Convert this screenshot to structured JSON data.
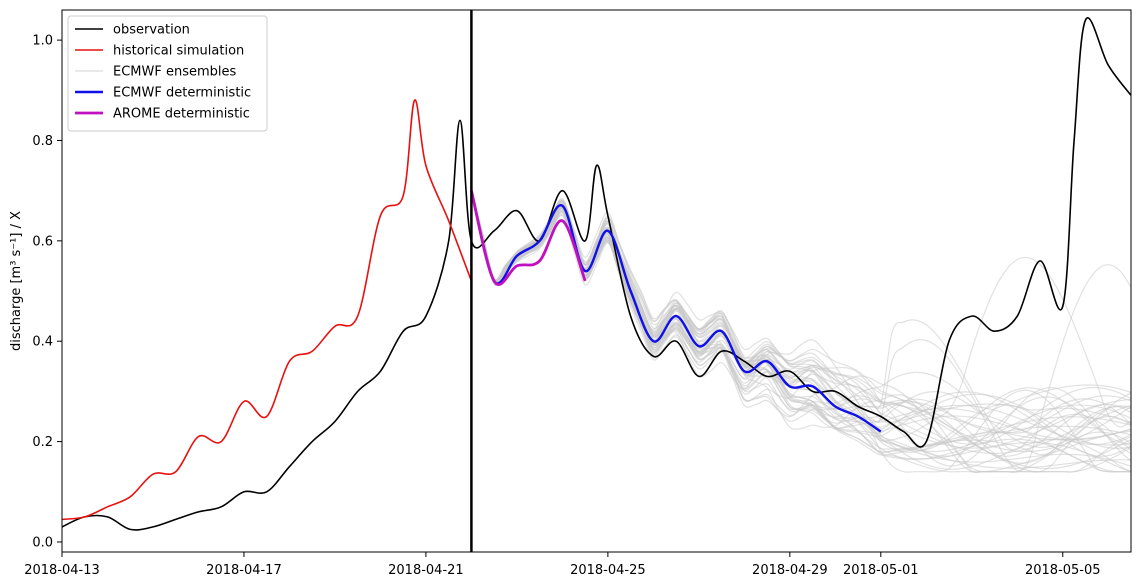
{
  "chart_data": {
    "type": "line",
    "ylabel": "discharge [m³ s⁻¹] / X",
    "xlim": [
      "2018-04-13",
      "2018-05-06 12:00"
    ],
    "ylim": [
      -0.02,
      1.06
    ],
    "x_ticks": [
      "2018-04-13",
      "2018-04-17",
      "2018-04-21",
      "2018-04-25",
      "2018-04-29",
      "2018-05-01",
      "2018-05-05"
    ],
    "y_ticks": [
      0.0,
      0.2,
      0.4,
      0.6,
      0.8,
      1.0
    ],
    "y_tick_labels": [
      "0.0",
      "0.2",
      "0.4",
      "0.6",
      "0.8",
      "1.0"
    ],
    "forecast_start": "2018-04-22",
    "grid": false,
    "legend_position": "top-left",
    "legend": [
      {
        "label": "observation",
        "color": "#000000"
      },
      {
        "label": "historical simulation",
        "color": "#e8110f"
      },
      {
        "label": "ECMWF ensembles",
        "color": "#d3d3d3"
      },
      {
        "label": "ECMWF deterministic",
        "color": "#1010e8"
      },
      {
        "label": "AROME deterministic",
        "color": "#c010c0"
      }
    ],
    "series": [
      {
        "name": "observation",
        "color": "#000000",
        "points": [
          [
            "2018-04-13",
            0.03
          ],
          [
            "2018-04-13 12:00",
            0.05
          ],
          [
            "2018-04-14",
            0.05
          ],
          [
            "2018-04-14 12:00",
            0.025
          ],
          [
            "2018-04-15",
            0.03
          ],
          [
            "2018-04-15 12:00",
            0.045
          ],
          [
            "2018-04-16",
            0.06
          ],
          [
            "2018-04-16 12:00",
            0.07
          ],
          [
            "2018-04-17",
            0.1
          ],
          [
            "2018-04-17 12:00",
            0.1
          ],
          [
            "2018-04-18",
            0.15
          ],
          [
            "2018-04-18 12:00",
            0.2
          ],
          [
            "2018-04-19",
            0.24
          ],
          [
            "2018-04-19 12:00",
            0.3
          ],
          [
            "2018-04-20",
            0.34
          ],
          [
            "2018-04-20 12:00",
            0.42
          ],
          [
            "2018-04-21",
            0.45
          ],
          [
            "2018-04-21 12:00",
            0.6
          ],
          [
            "2018-04-21 18:00",
            0.84
          ],
          [
            "2018-04-22",
            0.6
          ],
          [
            "2018-04-22 12:00",
            0.62
          ],
          [
            "2018-04-23",
            0.66
          ],
          [
            "2018-04-23 12:00",
            0.6
          ],
          [
            "2018-04-24",
            0.7
          ],
          [
            "2018-04-24 12:00",
            0.6
          ],
          [
            "2018-04-24 18:00",
            0.75
          ],
          [
            "2018-04-25",
            0.65
          ],
          [
            "2018-04-25 12:00",
            0.45
          ],
          [
            "2018-04-26",
            0.37
          ],
          [
            "2018-04-26 12:00",
            0.4
          ],
          [
            "2018-04-27",
            0.33
          ],
          [
            "2018-04-27 12:00",
            0.38
          ],
          [
            "2018-04-28",
            0.36
          ],
          [
            "2018-04-28 12:00",
            0.33
          ],
          [
            "2018-04-29",
            0.34
          ],
          [
            "2018-04-29 12:00",
            0.3
          ],
          [
            "2018-04-30",
            0.3
          ],
          [
            "2018-04-30 12:00",
            0.27
          ],
          [
            "2018-05-01",
            0.25
          ],
          [
            "2018-05-01 12:00",
            0.22
          ],
          [
            "2018-05-02",
            0.2
          ],
          [
            "2018-05-02 12:00",
            0.4
          ],
          [
            "2018-05-03",
            0.45
          ],
          [
            "2018-05-03 12:00",
            0.42
          ],
          [
            "2018-05-04",
            0.45
          ],
          [
            "2018-05-04 12:00",
            0.56
          ],
          [
            "2018-05-05",
            0.47
          ],
          [
            "2018-05-05 06:00",
            0.8
          ],
          [
            "2018-05-05 12:00",
            1.04
          ],
          [
            "2018-05-06",
            0.95
          ],
          [
            "2018-05-06 12:00",
            0.89
          ]
        ]
      },
      {
        "name": "historical simulation",
        "color": "#e8110f",
        "points": [
          [
            "2018-04-13",
            0.045
          ],
          [
            "2018-04-13 12:00",
            0.05
          ],
          [
            "2018-04-14",
            0.07
          ],
          [
            "2018-04-14 12:00",
            0.09
          ],
          [
            "2018-04-15",
            0.135
          ],
          [
            "2018-04-15 12:00",
            0.14
          ],
          [
            "2018-04-16",
            0.21
          ],
          [
            "2018-04-16 12:00",
            0.2
          ],
          [
            "2018-04-17",
            0.28
          ],
          [
            "2018-04-17 12:00",
            0.25
          ],
          [
            "2018-04-18",
            0.36
          ],
          [
            "2018-04-18 12:00",
            0.38
          ],
          [
            "2018-04-19",
            0.43
          ],
          [
            "2018-04-19 12:00",
            0.45
          ],
          [
            "2018-04-20",
            0.65
          ],
          [
            "2018-04-20 12:00",
            0.69
          ],
          [
            "2018-04-20 18:00",
            0.88
          ],
          [
            "2018-04-21",
            0.75
          ],
          [
            "2018-04-21 12:00",
            0.64
          ],
          [
            "2018-04-22",
            0.52
          ]
        ]
      },
      {
        "name": "ECMWF deterministic",
        "color": "#1010e8",
        "points": [
          [
            "2018-04-22",
            0.7
          ],
          [
            "2018-04-22 12:00",
            0.52
          ],
          [
            "2018-04-23",
            0.57
          ],
          [
            "2018-04-23 12:00",
            0.6
          ],
          [
            "2018-04-24",
            0.67
          ],
          [
            "2018-04-24 12:00",
            0.54
          ],
          [
            "2018-04-25",
            0.62
          ],
          [
            "2018-04-25 12:00",
            0.5
          ],
          [
            "2018-04-26",
            0.4
          ],
          [
            "2018-04-26 12:00",
            0.45
          ],
          [
            "2018-04-27",
            0.39
          ],
          [
            "2018-04-27 12:00",
            0.42
          ],
          [
            "2018-04-28",
            0.34
          ],
          [
            "2018-04-28 12:00",
            0.36
          ],
          [
            "2018-04-29",
            0.31
          ],
          [
            "2018-04-29 12:00",
            0.31
          ],
          [
            "2018-04-30",
            0.27
          ],
          [
            "2018-04-30 12:00",
            0.25
          ],
          [
            "2018-05-01",
            0.22
          ]
        ]
      },
      {
        "name": "AROME deterministic",
        "color": "#c010c0",
        "points": [
          [
            "2018-04-22",
            0.7
          ],
          [
            "2018-04-22 12:00",
            0.52
          ],
          [
            "2018-04-23",
            0.55
          ],
          [
            "2018-04-23 12:00",
            0.56
          ],
          [
            "2018-04-24",
            0.64
          ],
          [
            "2018-04-24 12:00",
            0.52
          ]
        ]
      }
    ]
  }
}
